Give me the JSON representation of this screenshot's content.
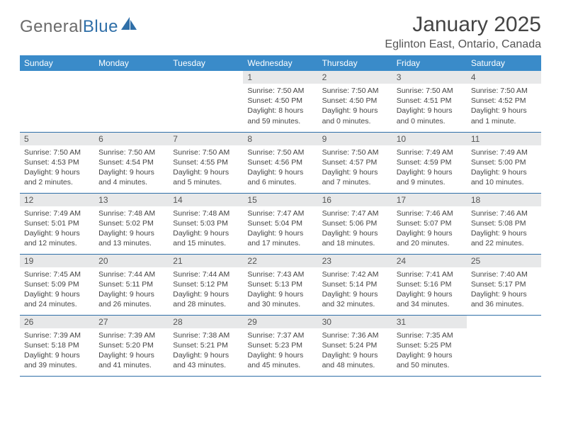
{
  "logo": {
    "text1": "General",
    "text2": "Blue"
  },
  "title": "January 2025",
  "location": "Eglinton East, Ontario, Canada",
  "colors": {
    "header_bg": "#3a8bc9",
    "daynum_bg": "#e7e8e9",
    "rule": "#2f6fa8",
    "logo_gray": "#6b6b6b",
    "logo_blue": "#2f6fa8",
    "text": "#444444"
  },
  "dow": [
    "Sunday",
    "Monday",
    "Tuesday",
    "Wednesday",
    "Thursday",
    "Friday",
    "Saturday"
  ],
  "weeks": [
    [
      null,
      null,
      null,
      {
        "n": "1",
        "sunrise": "7:50 AM",
        "sunset": "4:50 PM",
        "daylight": "8 hours and 59 minutes."
      },
      {
        "n": "2",
        "sunrise": "7:50 AM",
        "sunset": "4:50 PM",
        "daylight": "9 hours and 0 minutes."
      },
      {
        "n": "3",
        "sunrise": "7:50 AM",
        "sunset": "4:51 PM",
        "daylight": "9 hours and 0 minutes."
      },
      {
        "n": "4",
        "sunrise": "7:50 AM",
        "sunset": "4:52 PM",
        "daylight": "9 hours and 1 minute."
      }
    ],
    [
      {
        "n": "5",
        "sunrise": "7:50 AM",
        "sunset": "4:53 PM",
        "daylight": "9 hours and 2 minutes."
      },
      {
        "n": "6",
        "sunrise": "7:50 AM",
        "sunset": "4:54 PM",
        "daylight": "9 hours and 4 minutes."
      },
      {
        "n": "7",
        "sunrise": "7:50 AM",
        "sunset": "4:55 PM",
        "daylight": "9 hours and 5 minutes."
      },
      {
        "n": "8",
        "sunrise": "7:50 AM",
        "sunset": "4:56 PM",
        "daylight": "9 hours and 6 minutes."
      },
      {
        "n": "9",
        "sunrise": "7:50 AM",
        "sunset": "4:57 PM",
        "daylight": "9 hours and 7 minutes."
      },
      {
        "n": "10",
        "sunrise": "7:49 AM",
        "sunset": "4:59 PM",
        "daylight": "9 hours and 9 minutes."
      },
      {
        "n": "11",
        "sunrise": "7:49 AM",
        "sunset": "5:00 PM",
        "daylight": "9 hours and 10 minutes."
      }
    ],
    [
      {
        "n": "12",
        "sunrise": "7:49 AM",
        "sunset": "5:01 PM",
        "daylight": "9 hours and 12 minutes."
      },
      {
        "n": "13",
        "sunrise": "7:48 AM",
        "sunset": "5:02 PM",
        "daylight": "9 hours and 13 minutes."
      },
      {
        "n": "14",
        "sunrise": "7:48 AM",
        "sunset": "5:03 PM",
        "daylight": "9 hours and 15 minutes."
      },
      {
        "n": "15",
        "sunrise": "7:47 AM",
        "sunset": "5:04 PM",
        "daylight": "9 hours and 17 minutes."
      },
      {
        "n": "16",
        "sunrise": "7:47 AM",
        "sunset": "5:06 PM",
        "daylight": "9 hours and 18 minutes."
      },
      {
        "n": "17",
        "sunrise": "7:46 AM",
        "sunset": "5:07 PM",
        "daylight": "9 hours and 20 minutes."
      },
      {
        "n": "18",
        "sunrise": "7:46 AM",
        "sunset": "5:08 PM",
        "daylight": "9 hours and 22 minutes."
      }
    ],
    [
      {
        "n": "19",
        "sunrise": "7:45 AM",
        "sunset": "5:09 PM",
        "daylight": "9 hours and 24 minutes."
      },
      {
        "n": "20",
        "sunrise": "7:44 AM",
        "sunset": "5:11 PM",
        "daylight": "9 hours and 26 minutes."
      },
      {
        "n": "21",
        "sunrise": "7:44 AM",
        "sunset": "5:12 PM",
        "daylight": "9 hours and 28 minutes."
      },
      {
        "n": "22",
        "sunrise": "7:43 AM",
        "sunset": "5:13 PM",
        "daylight": "9 hours and 30 minutes."
      },
      {
        "n": "23",
        "sunrise": "7:42 AM",
        "sunset": "5:14 PM",
        "daylight": "9 hours and 32 minutes."
      },
      {
        "n": "24",
        "sunrise": "7:41 AM",
        "sunset": "5:16 PM",
        "daylight": "9 hours and 34 minutes."
      },
      {
        "n": "25",
        "sunrise": "7:40 AM",
        "sunset": "5:17 PM",
        "daylight": "9 hours and 36 minutes."
      }
    ],
    [
      {
        "n": "26",
        "sunrise": "7:39 AM",
        "sunset": "5:18 PM",
        "daylight": "9 hours and 39 minutes."
      },
      {
        "n": "27",
        "sunrise": "7:39 AM",
        "sunset": "5:20 PM",
        "daylight": "9 hours and 41 minutes."
      },
      {
        "n": "28",
        "sunrise": "7:38 AM",
        "sunset": "5:21 PM",
        "daylight": "9 hours and 43 minutes."
      },
      {
        "n": "29",
        "sunrise": "7:37 AM",
        "sunset": "5:23 PM",
        "daylight": "9 hours and 45 minutes."
      },
      {
        "n": "30",
        "sunrise": "7:36 AM",
        "sunset": "5:24 PM",
        "daylight": "9 hours and 48 minutes."
      },
      {
        "n": "31",
        "sunrise": "7:35 AM",
        "sunset": "5:25 PM",
        "daylight": "9 hours and 50 minutes."
      },
      null
    ]
  ],
  "labels": {
    "sunrise": "Sunrise: ",
    "sunset": "Sunset: ",
    "daylight": "Daylight: "
  }
}
